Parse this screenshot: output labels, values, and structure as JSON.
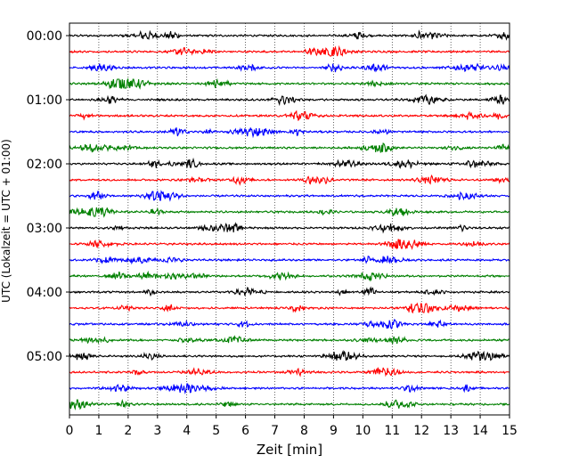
{
  "chart_data": {
    "type": "line",
    "title": "",
    "xlabel": "Zeit  [min]",
    "ylabel": "UTC (Lokalzeit = UTC + 01:00)",
    "xlim": [
      0,
      15
    ],
    "x_ticks": [
      "0",
      "1",
      "2",
      "3",
      "4",
      "5",
      "6",
      "7",
      "8",
      "9",
      "10",
      "11",
      "12",
      "13",
      "14",
      "15"
    ],
    "y_tick_labels": [
      "00:00",
      "01:00",
      "02:00",
      "03:00",
      "04:00",
      "05:00"
    ],
    "grid": "vertical dotted at each minute",
    "trace_interval_minutes": 15,
    "trace_count": 24,
    "trace_colors": [
      "#000000",
      "#ff0000",
      "#0000ff",
      "#008000"
    ]
  }
}
